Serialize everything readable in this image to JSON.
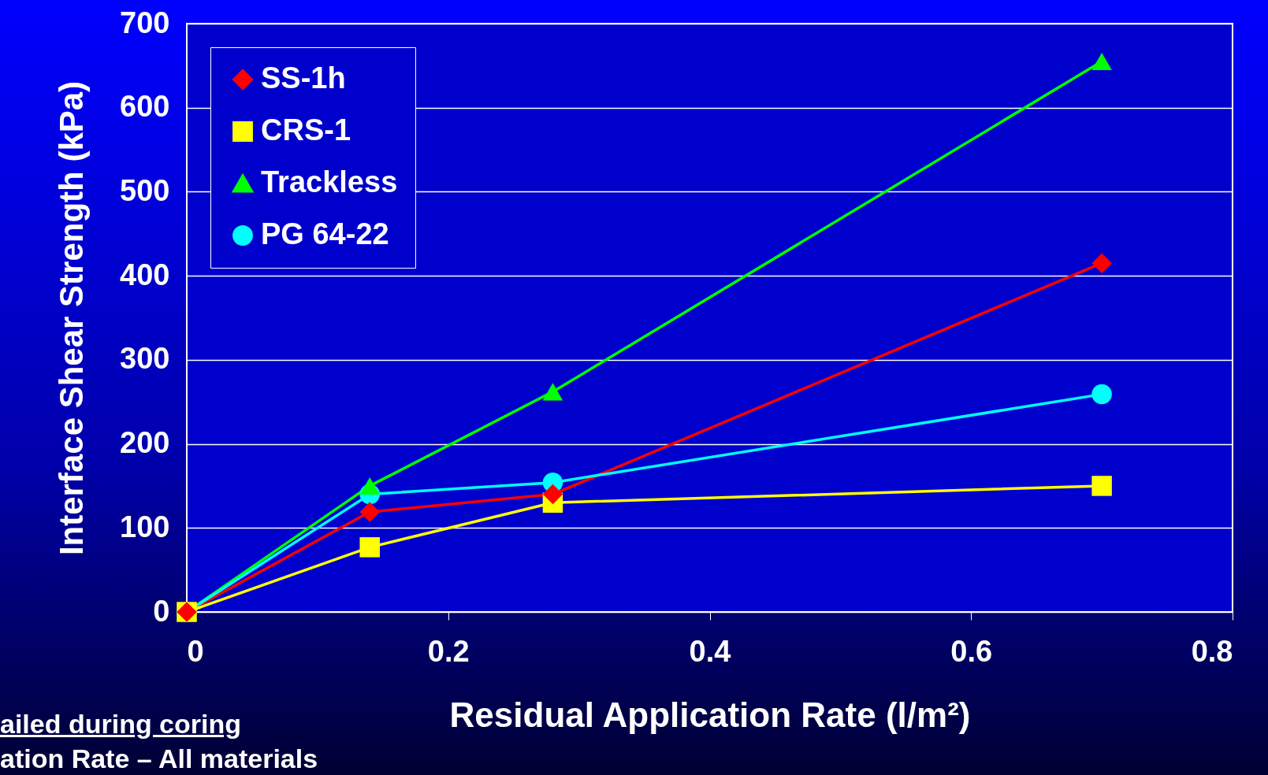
{
  "chart_data": {
    "type": "line",
    "xlabel": "Residual Application Rate (l/m²)",
    "ylabel": "Interface Shear Strength (kPa)",
    "x": [
      0,
      0.14,
      0.28,
      0.7
    ],
    "series": [
      {
        "name": "SS-1h",
        "color": "#ff0000",
        "marker": "diamond",
        "values": [
          0,
          119,
          140,
          415
        ]
      },
      {
        "name": "CRS-1",
        "color": "#ffff00",
        "marker": "square",
        "values": [
          0,
          77,
          130,
          150
        ]
      },
      {
        "name": "Trackless",
        "color": "#00ff00",
        "marker": "triangle",
        "values": [
          0,
          150,
          262,
          655
        ]
      },
      {
        "name": "PG 64-22",
        "color": "#00ffff",
        "marker": "circle",
        "values": [
          0,
          140,
          154,
          259
        ]
      }
    ],
    "xlim": [
      0,
      0.8
    ],
    "xticks": [
      0,
      0.2,
      0.4,
      0.6,
      0.8
    ],
    "ylim": [
      0,
      700
    ],
    "yticks": [
      0,
      100,
      200,
      300,
      400,
      500,
      600,
      700
    ],
    "grid": "y",
    "legend": "top left",
    "annotations": [
      "ailed during coring",
      "ation Rate – All materials"
    ]
  }
}
